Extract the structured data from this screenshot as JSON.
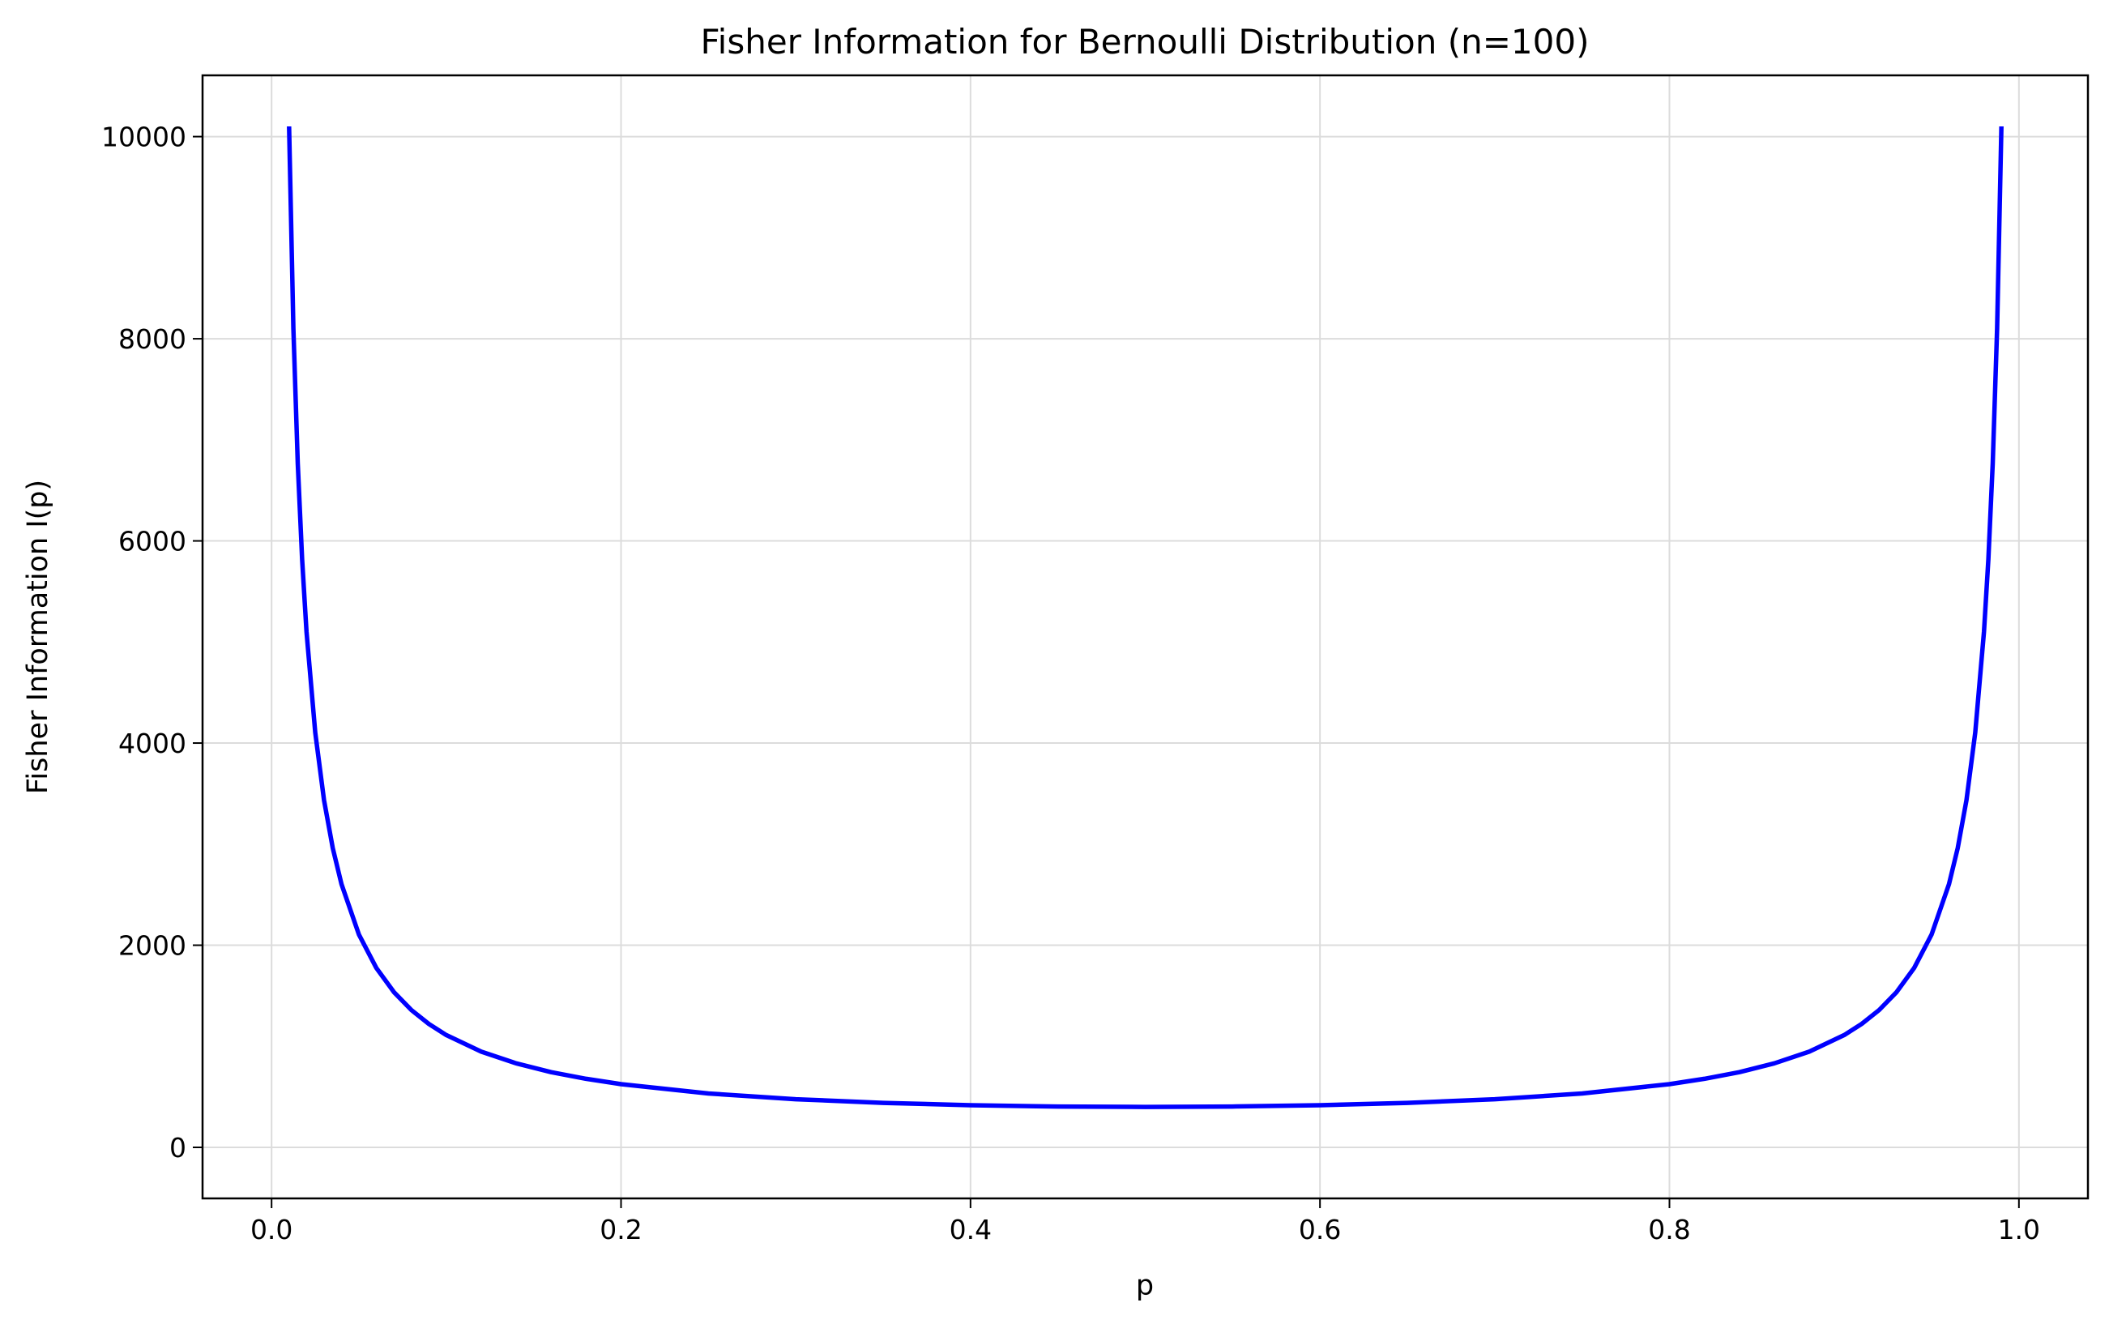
{
  "chart_data": {
    "type": "line",
    "title": "Fisher Information for Bernoulli Distribution (n=100)",
    "xlabel": "p",
    "ylabel": "Fisher Information I(p)",
    "xlim": [
      -0.0395,
      1.0395
    ],
    "ylim": [
      -505,
      10606
    ],
    "x_ticks": [
      0.0,
      0.2,
      0.4,
      0.6,
      0.8,
      1.0
    ],
    "x_tick_labels": [
      "0.0",
      "0.2",
      "0.4",
      "0.6",
      "0.8",
      "1.0"
    ],
    "y_ticks": [
      0,
      2000,
      4000,
      6000,
      8000,
      10000
    ],
    "y_tick_labels": [
      "0",
      "2000",
      "4000",
      "6000",
      "8000",
      "10000"
    ],
    "grid": true,
    "series": [
      {
        "color": "#0000ff",
        "x": [
          0.01,
          0.0125,
          0.015,
          0.0175,
          0.02,
          0.025,
          0.03,
          0.035,
          0.04,
          0.05,
          0.06,
          0.07,
          0.08,
          0.09,
          0.1,
          0.12,
          0.14,
          0.16,
          0.18,
          0.2,
          0.25,
          0.3,
          0.35,
          0.4,
          0.45,
          0.5,
          0.55,
          0.6,
          0.65,
          0.7,
          0.75,
          0.8,
          0.82,
          0.84,
          0.86,
          0.88,
          0.9,
          0.91,
          0.92,
          0.93,
          0.94,
          0.95,
          0.96,
          0.965,
          0.97,
          0.975,
          0.98,
          0.9825,
          0.985,
          0.9875,
          0.99
        ],
        "y": [
          10101,
          8101,
          6768,
          5816,
          5102,
          4103,
          3436,
          2961,
          2604,
          2105,
          1773,
          1536,
          1359,
          1221,
          1111,
          947,
          831,
          744,
          678,
          625,
          533,
          476,
          440,
          417,
          404,
          400,
          404,
          417,
          440,
          476,
          533,
          625,
          678,
          744,
          831,
          947,
          1111,
          1221,
          1359,
          1536,
          1773,
          2105,
          2604,
          2961,
          3436,
          4103,
          5102,
          5816,
          6768,
          8101,
          10101
        ]
      }
    ]
  }
}
